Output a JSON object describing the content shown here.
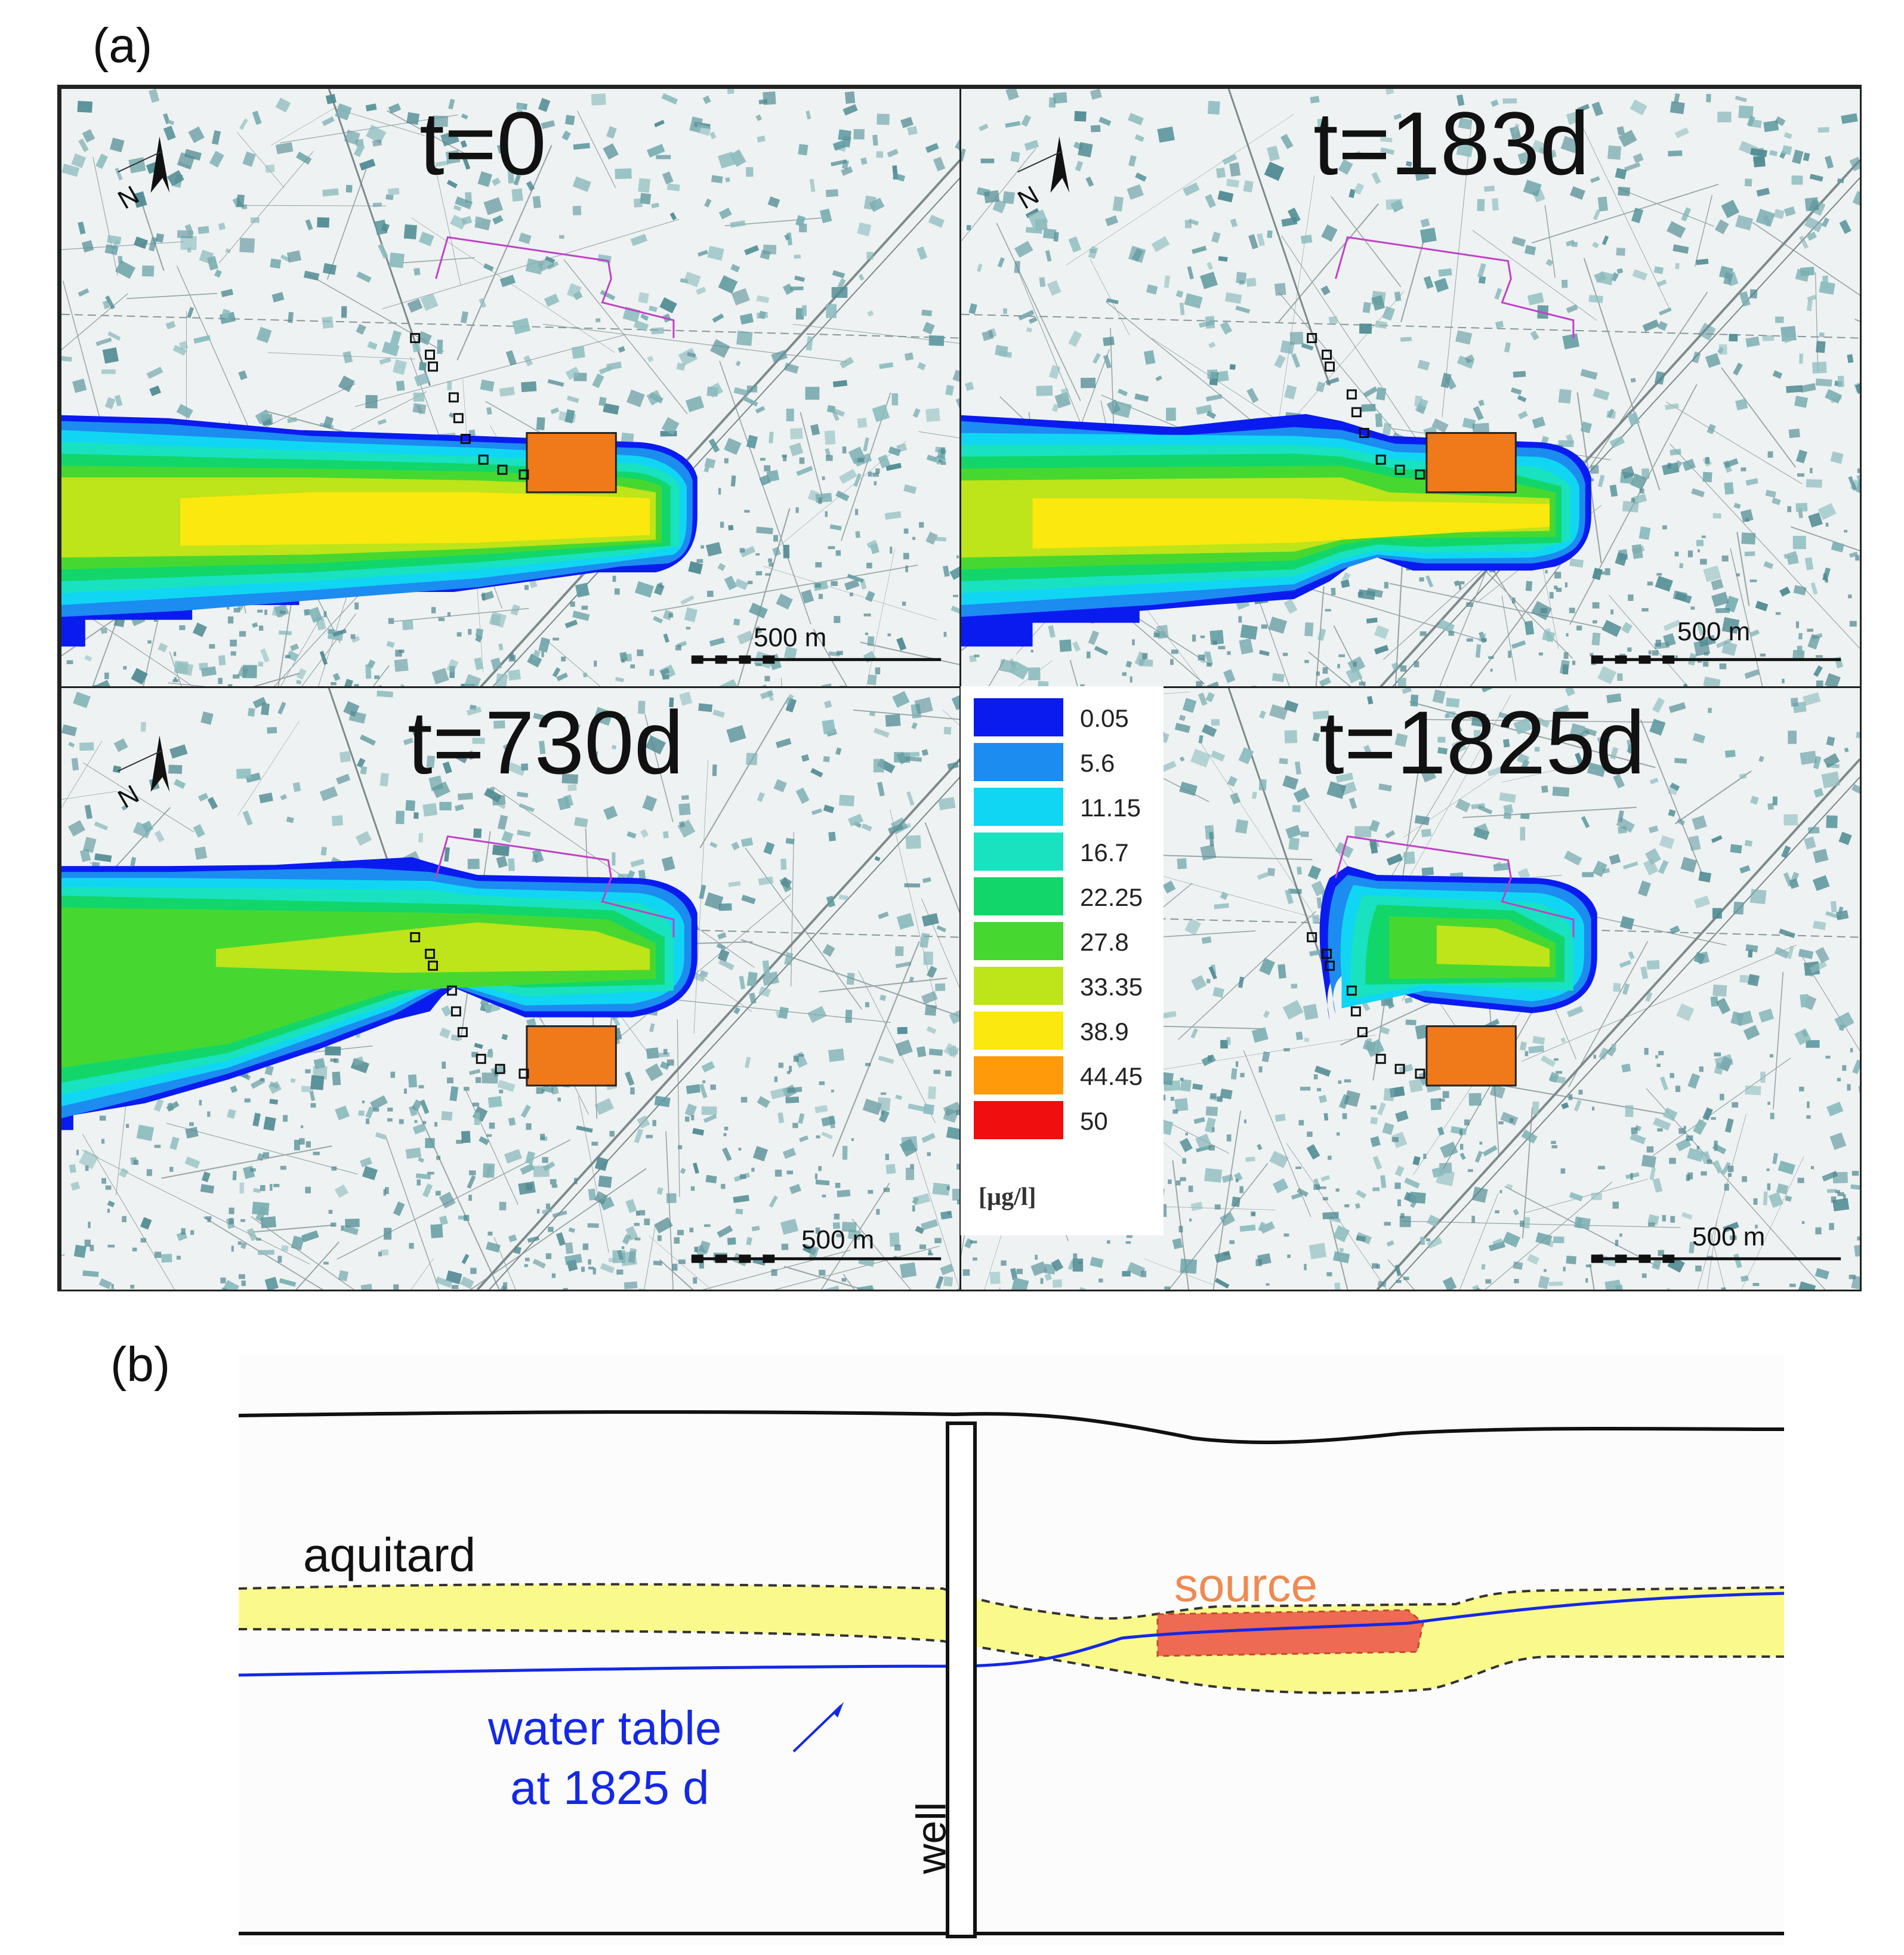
{
  "panel_a": {
    "label": "(a)",
    "maps": [
      {
        "time": "t=0",
        "scale_text": "500 m",
        "plume": "full"
      },
      {
        "time": "t=183d",
        "scale_text": "500 m",
        "plume": "necked"
      },
      {
        "time": "t=730d",
        "scale_text": "500 m",
        "plume": "detached-thin"
      },
      {
        "time": "t=1825d",
        "scale_text": "500 m",
        "plume": "isolated"
      }
    ],
    "north_arrow": "north-arrow-icon",
    "legend": {
      "unit": "[µg/l]",
      "entries": [
        {
          "value": "0.05",
          "color": "#0a1bf0"
        },
        {
          "value": "5.6",
          "color": "#1c8cf0"
        },
        {
          "value": "11.15",
          "color": "#10d6f4"
        },
        {
          "value": "16.7",
          "color": "#18e2c0"
        },
        {
          "value": "22.25",
          "color": "#12d66a"
        },
        {
          "value": "27.8",
          "color": "#46d830"
        },
        {
          "value": "33.35",
          "color": "#bee41a"
        },
        {
          "value": "38.9",
          "color": "#fbe80e"
        },
        {
          "value": "44.45",
          "color": "#ff9a0a"
        },
        {
          "value": "50",
          "color": "#f00e0e"
        }
      ]
    }
  },
  "panel_b": {
    "label": "(b)",
    "aquitard_label": "aquitard",
    "source_label": "source",
    "water_table_label": [
      "water table",
      "at 1825 d"
    ],
    "well_label": "well",
    "colors": {
      "aquitard": "#fafa8c",
      "water_table": "#1428e6",
      "source_fill": "#ee6a52",
      "source_text": "#ee8a52"
    }
  }
}
